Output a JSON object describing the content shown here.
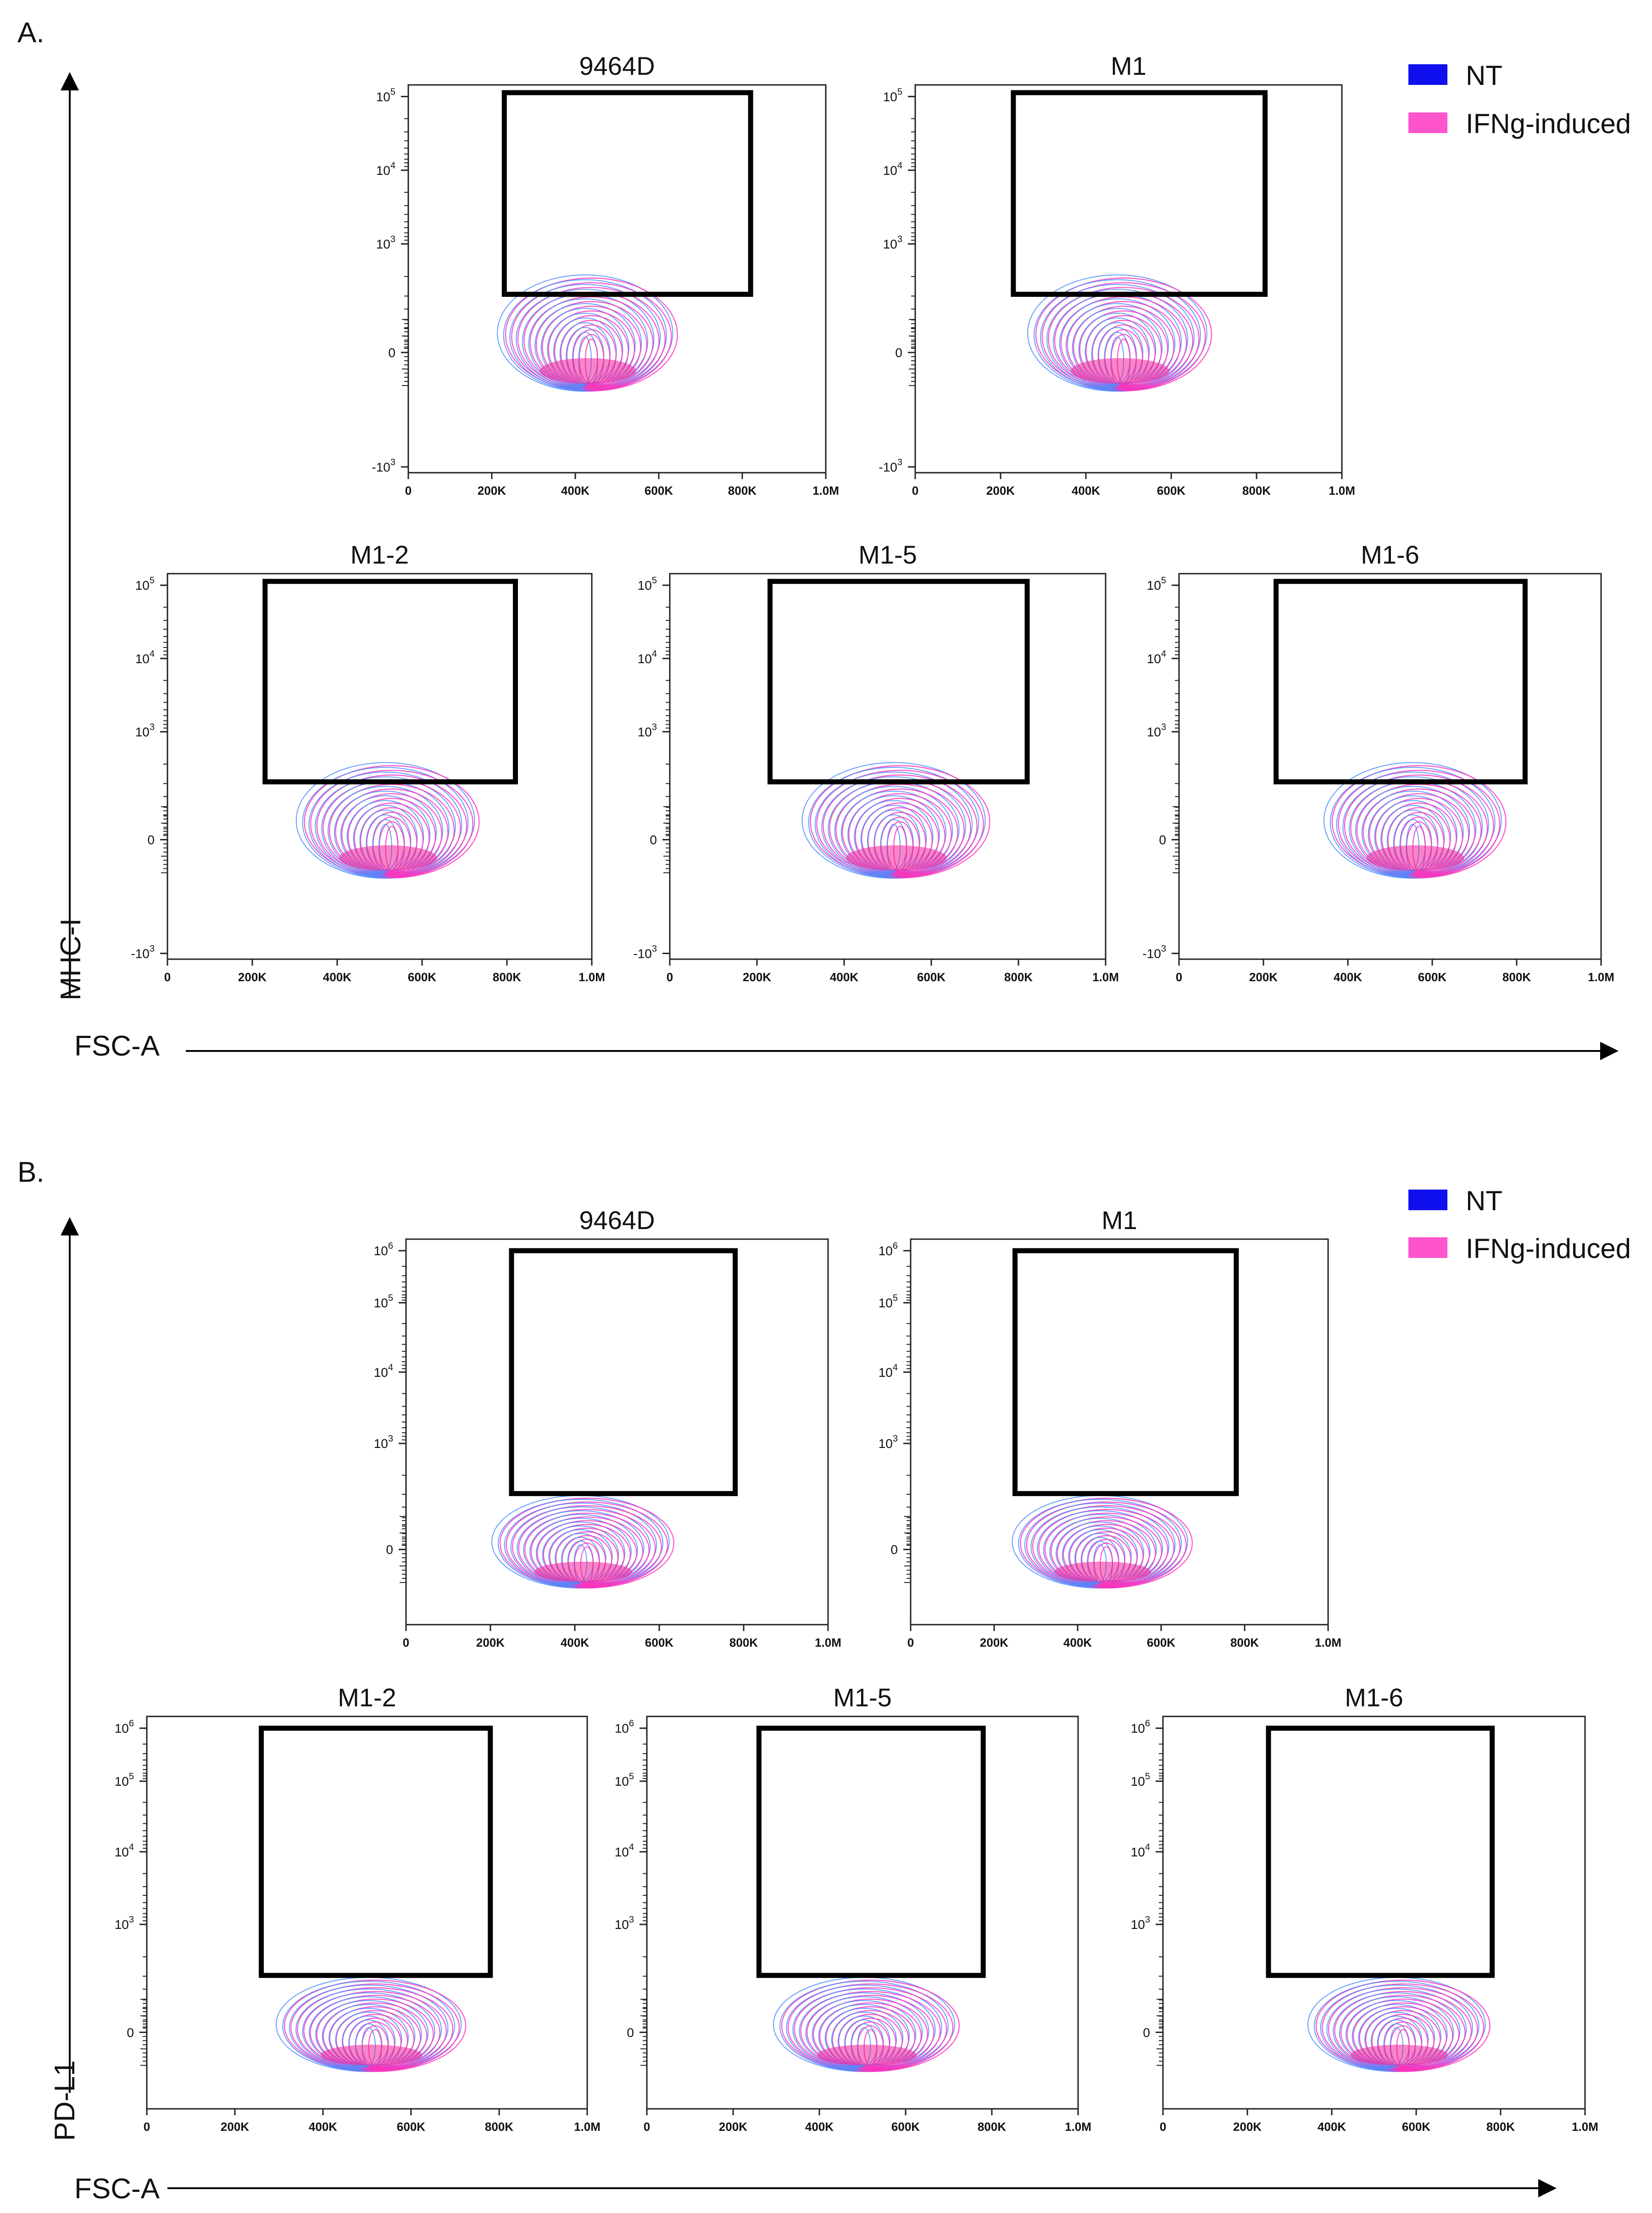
{
  "legend": [
    {
      "label": "NT",
      "color": "#1010ee"
    },
    {
      "label": "IFNg-induced",
      "color": "#ff55cc"
    }
  ],
  "colors": {
    "nt": "#4a8cff",
    "ifng": "#ff33bb",
    "core": "#ee2299",
    "gate": "#000000"
  },
  "chart_data": [
    {
      "panel": "A.",
      "type": "contour",
      "xlabel": "FSC-A",
      "ylabel": "MHC-I",
      "x_ticks": [
        "0",
        "200K",
        "400K",
        "600K",
        "800K",
        "1.0M"
      ],
      "y_ticks": [
        {
          "base": "10",
          "exp": "5"
        },
        {
          "base": "10",
          "exp": "4"
        },
        {
          "base": "10",
          "exp": "3"
        },
        {
          "base": "0",
          "exp": ""
        },
        {
          "base": "-10",
          "exp": "3"
        }
      ],
      "x_range": [
        0,
        1000000
      ],
      "plots": [
        {
          "title": "9464D",
          "gate_x": [
            230000,
            820000
          ],
          "pop_center_x": 430000
        },
        {
          "title": "M1",
          "gate_x": [
            230000,
            820000
          ],
          "pop_center_x": 480000
        },
        {
          "title": "M1-2",
          "gate_x": [
            230000,
            820000
          ],
          "pop_center_x": 520000
        },
        {
          "title": "M1-5",
          "gate_x": [
            230000,
            820000
          ],
          "pop_center_x": 520000
        },
        {
          "title": "M1-6",
          "gate_x": [
            230000,
            820000
          ],
          "pop_center_x": 560000
        }
      ]
    },
    {
      "panel": "B.",
      "type": "contour",
      "xlabel": "FSC-A",
      "ylabel": "PD-L1",
      "x_ticks": [
        "0",
        "200K",
        "400K",
        "600K",
        "800K",
        "1.0M"
      ],
      "y_ticks": [
        {
          "base": "10",
          "exp": "6"
        },
        {
          "base": "10",
          "exp": "5"
        },
        {
          "base": "10",
          "exp": "4"
        },
        {
          "base": "10",
          "exp": "3"
        },
        {
          "base": "0",
          "exp": ""
        }
      ],
      "x_range": [
        0,
        1000000
      ],
      "plots": [
        {
          "title": "9464D",
          "gate_x": [
            250000,
            780000
          ],
          "pop_center_x": 420000
        },
        {
          "title": "M1",
          "gate_x": [
            250000,
            780000
          ],
          "pop_center_x": 460000
        },
        {
          "title": "M1-2",
          "gate_x": [
            260000,
            780000
          ],
          "pop_center_x": 510000
        },
        {
          "title": "M1-5",
          "gate_x": [
            260000,
            780000
          ],
          "pop_center_x": 510000
        },
        {
          "title": "M1-6",
          "gate_x": [
            250000,
            780000
          ],
          "pop_center_x": 560000
        }
      ]
    }
  ]
}
